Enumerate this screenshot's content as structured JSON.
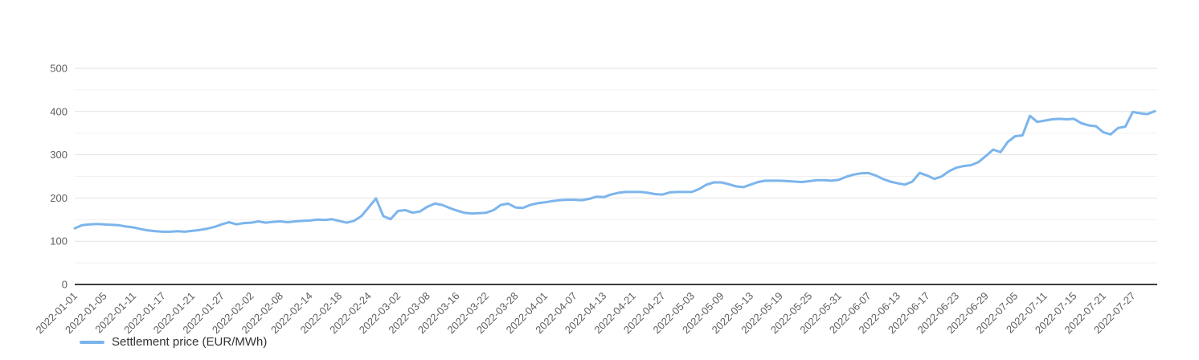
{
  "legend": {
    "label": "Settlement price (EUR/MWh)"
  },
  "colors": {
    "line": "#7cb5ec",
    "grid_major": "#e2e2e2",
    "grid_minor": "#f1f1f1",
    "axis_line": "#3c3c3c",
    "tick_label": "#5f5f5f",
    "legend_text": "#333333"
  },
  "chart_data": {
    "type": "line",
    "title": "",
    "xlabel": "",
    "ylabel": "",
    "ylim": [
      0,
      500
    ],
    "y_ticks": [
      0,
      100,
      200,
      300,
      400,
      500
    ],
    "y_minor_step": 50,
    "grid": true,
    "legend_position": "bottom-left",
    "x_tick_every": 4,
    "x_tick_labels": [
      "2022-01-01",
      "2022-01-05",
      "2022-01-11",
      "2022-01-17",
      "2022-01-21",
      "2022-01-27",
      "2022-02-02",
      "2022-02-08",
      "2022-02-14",
      "2022-02-18",
      "2022-02-24",
      "2022-03-02",
      "2022-03-08",
      "2022-03-16",
      "2022-03-22",
      "2022-03-28",
      "2022-04-01",
      "2022-04-07",
      "2022-04-13",
      "2022-04-21",
      "2022-04-27",
      "2022-05-03",
      "2022-05-09",
      "2022-05-13",
      "2022-05-19",
      "2022-05-25",
      "2022-05-31",
      "2022-06-07",
      "2022-06-13",
      "2022-06-17",
      "2022-06-23",
      "2022-06-29",
      "2022-07-05",
      "2022-07-11",
      "2022-07-15",
      "2022-07-21",
      "2022-07-27"
    ],
    "series": [
      {
        "name": "Settlement price (EUR/MWh)",
        "color": "#7cb5ec",
        "values": [
          130,
          137,
          139,
          140,
          139,
          138,
          137,
          134,
          132,
          128,
          125,
          123,
          122,
          122,
          123,
          122,
          124,
          126,
          129,
          133,
          139,
          144,
          139,
          142,
          143,
          146,
          143,
          145,
          146,
          144,
          146,
          147,
          148,
          150,
          149,
          151,
          147,
          143,
          147,
          158,
          178,
          199,
          158,
          151,
          170,
          172,
          166,
          169,
          180,
          187,
          184,
          177,
          171,
          166,
          164,
          165,
          166,
          172,
          184,
          187,
          178,
          177,
          184,
          188,
          190,
          193,
          195,
          196,
          196,
          195,
          198,
          203,
          202,
          208,
          212,
          214,
          214,
          214,
          212,
          209,
          208,
          213,
          214,
          214,
          214,
          221,
          231,
          236,
          236,
          232,
          227,
          225,
          231,
          237,
          240,
          240,
          240,
          239,
          238,
          237,
          239,
          241,
          241,
          240,
          242,
          249,
          254,
          257,
          258,
          252,
          244,
          238,
          234,
          231,
          238,
          258,
          252,
          244,
          250,
          262,
          270,
          274,
          276,
          283,
          297,
          312,
          306,
          330,
          343,
          345,
          390,
          376,
          379,
          382,
          383,
          382,
          383,
          373,
          368,
          366,
          352,
          347,
          362,
          365,
          399,
          396,
          394,
          401
        ]
      }
    ]
  }
}
